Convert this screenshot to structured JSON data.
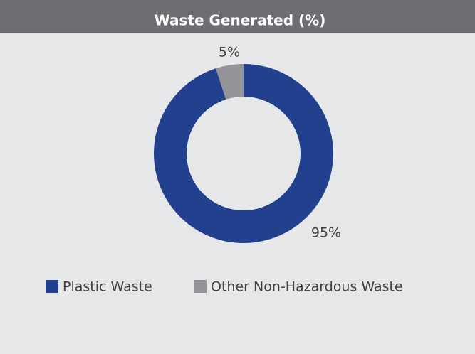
{
  "chart_data": {
    "type": "donut",
    "title": "Waste Generated (%)",
    "categories": [
      "Plastic Waste",
      "Other Non-Hazardous Waste"
    ],
    "values": [
      95,
      5
    ],
    "value_labels": [
      "95%",
      "5%"
    ],
    "colors": [
      "#22408e",
      "#939598"
    ]
  }
}
